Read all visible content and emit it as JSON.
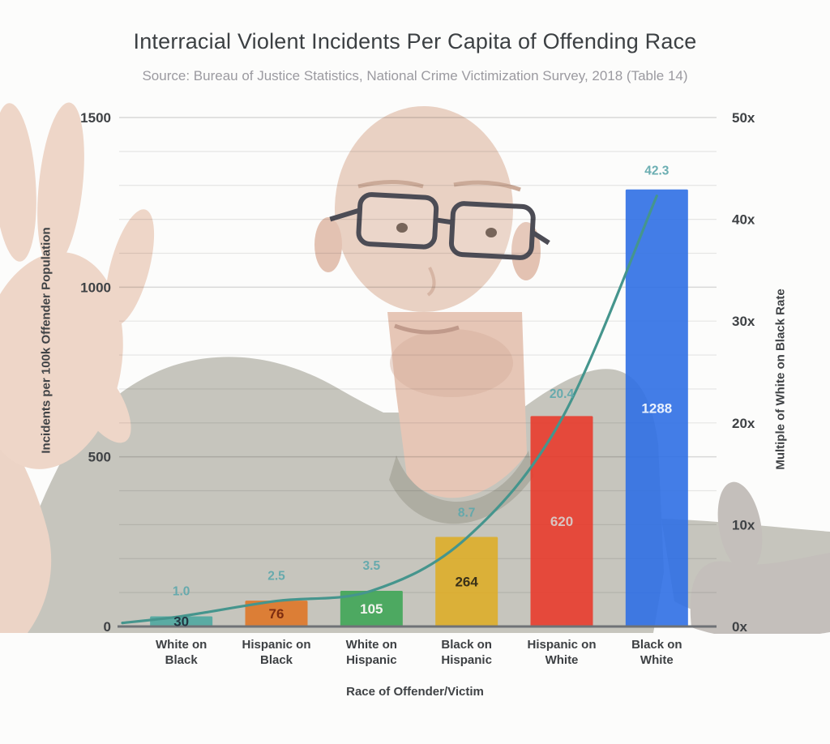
{
  "title": "Interracial Violent Incidents Per Capita of Offending Race",
  "source": "Source: Bureau of Justice Statistics, National Crime Victimization Survey, 2018 (Table 14)",
  "chart_data": {
    "type": "bar",
    "subtype": "combo-bar-line",
    "title": "Interracial Violent Incidents Per Capita of Offending Race",
    "source": "Source: Bureau of Justice Statistics, National Crime Victimization Survey, 2018 (Table 14)",
    "xlabel": "Race of Offender/Victim",
    "categories": [
      "White on Black",
      "Hispanic on Black",
      "White on Hispanic",
      "Black on Hispanic",
      "Hispanic on White",
      "Black on White"
    ],
    "category_label_lines": [
      [
        "White on",
        "Black"
      ],
      [
        "Hispanic on",
        "Black"
      ],
      [
        "White on",
        "Hispanic"
      ],
      [
        "Black on",
        "Hispanic"
      ],
      [
        "Hispanic on",
        "White"
      ],
      [
        "Black on",
        "White"
      ]
    ],
    "bar_series": {
      "name": "Incidents per 100k Offender Population",
      "axis": "left",
      "values": [
        30,
        76,
        105,
        264,
        620,
        1288
      ],
      "value_labels": [
        "30",
        "76",
        "105",
        "264",
        "620",
        "1288"
      ],
      "colors": [
        "#4ea7a0",
        "#de7527",
        "#3fa556",
        "#ddad29",
        "#e83b2c",
        "#2f6fe4"
      ],
      "label_colors": [
        "#223642",
        "#7d2c10",
        "#f2f4ee",
        "#3a3119",
        "#d9c4c0",
        "#eaf1fd"
      ]
    },
    "line_series": {
      "name": "Multiple of White on Black Rate",
      "axis": "right",
      "values": [
        1.0,
        2.5,
        3.5,
        8.7,
        20.4,
        42.3
      ],
      "value_labels": [
        "1.0",
        "2.5",
        "3.5",
        "8.7",
        "20.4",
        "42.3"
      ],
      "color": "#45958d",
      "label_color": "#5fa8ac"
    },
    "left_axis": {
      "label": "Incidents per 100k Offender Population",
      "min": 0,
      "max": 1500,
      "ticks": [
        0,
        500,
        1000,
        1500
      ],
      "minor_step": 100
    },
    "right_axis": {
      "label": "Multiple of White on Black Rate",
      "min": 0,
      "max": 50,
      "ticks": [
        0,
        10,
        20,
        30,
        40,
        50
      ],
      "tick_labels": [
        "0x",
        "10x",
        "20x",
        "30x",
        "40x",
        "50x"
      ]
    },
    "grid": true,
    "legend": "none"
  }
}
